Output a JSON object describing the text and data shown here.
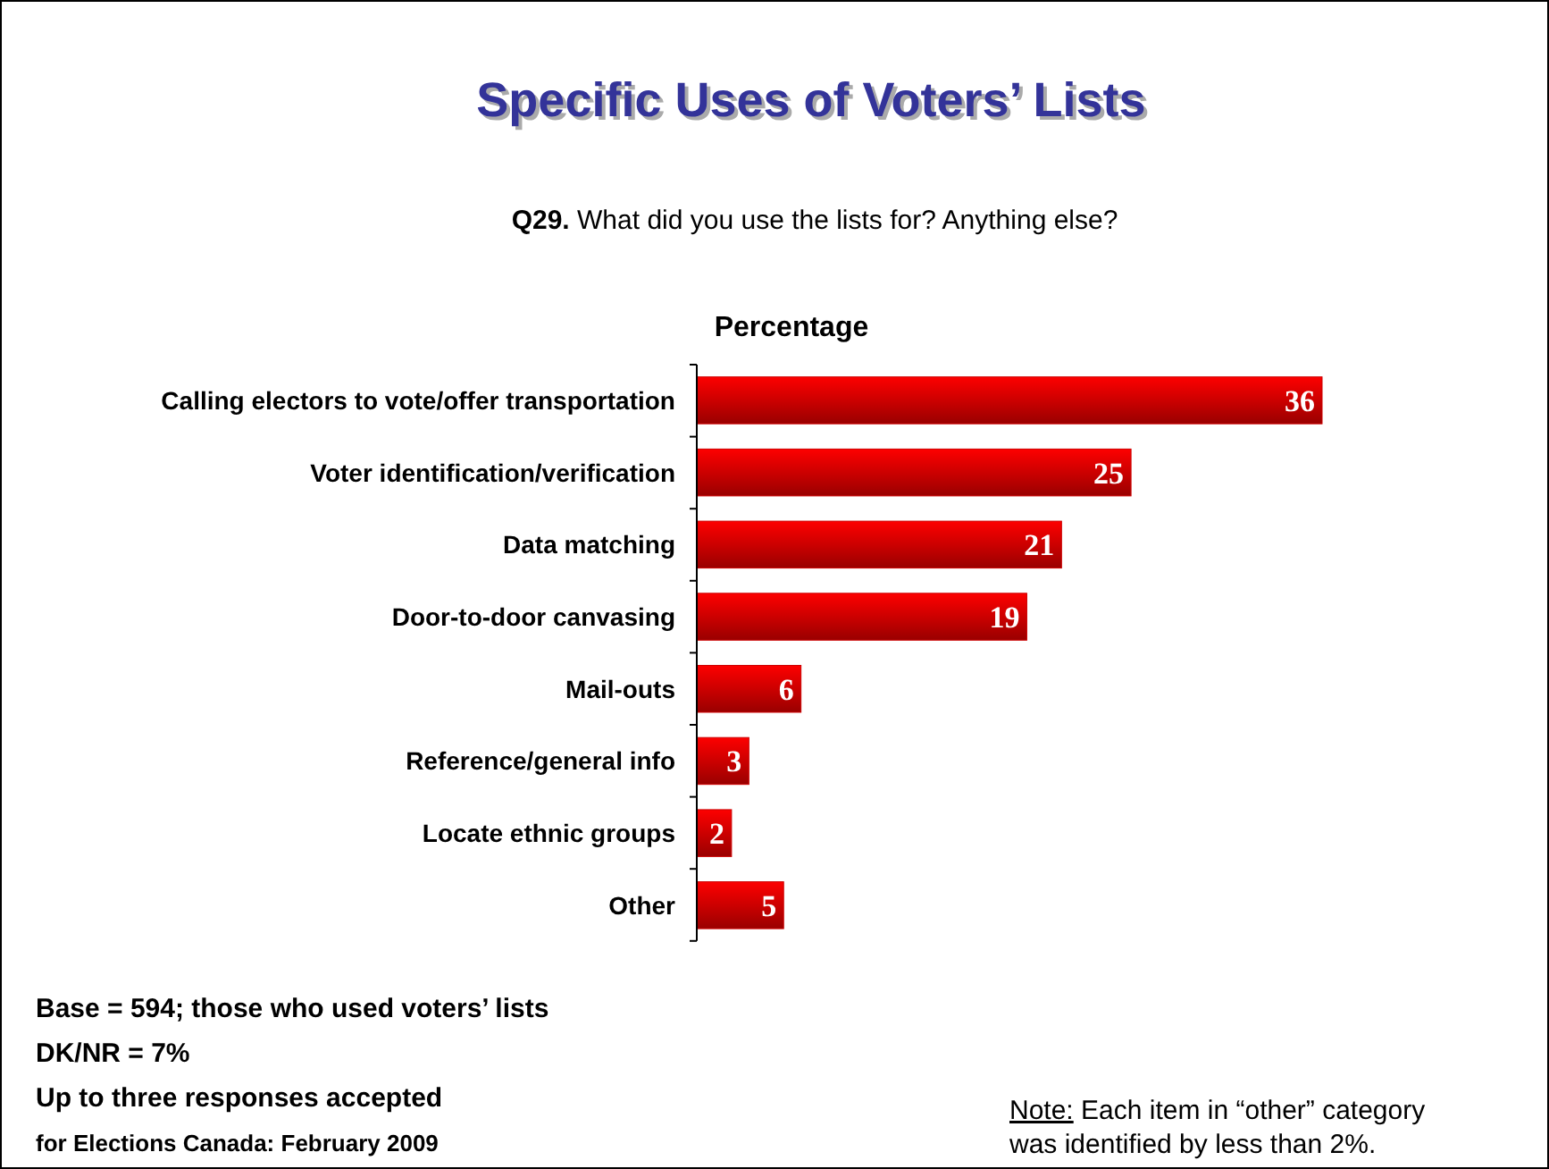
{
  "chart_data": {
    "type": "bar",
    "orientation": "horizontal",
    "title": "Specific Uses of Voters’ Lists",
    "subtitle": "Q29. What did you use the lists for? Anything else?",
    "xlabel": "Percentage",
    "categories": [
      "Calling electors to vote/offer transportation",
      "Voter identification/verification",
      "Data matching",
      "Door-to-door canvasing",
      "Mail-outs",
      "Reference/general info",
      "Locate ethnic groups",
      "Other"
    ],
    "values": [
      36,
      25,
      21,
      19,
      6,
      3,
      2,
      5
    ],
    "color": "#cc0000",
    "data_labels": true,
    "annotations": [
      "Base = 594; those who used voters’ lists",
      "DK/NR = 7%",
      "Up to three responses accepted",
      "for Elections Canada: February 2009",
      "Note: Each item in “other” category\nwas identified by less than 2%."
    ]
  }
}
